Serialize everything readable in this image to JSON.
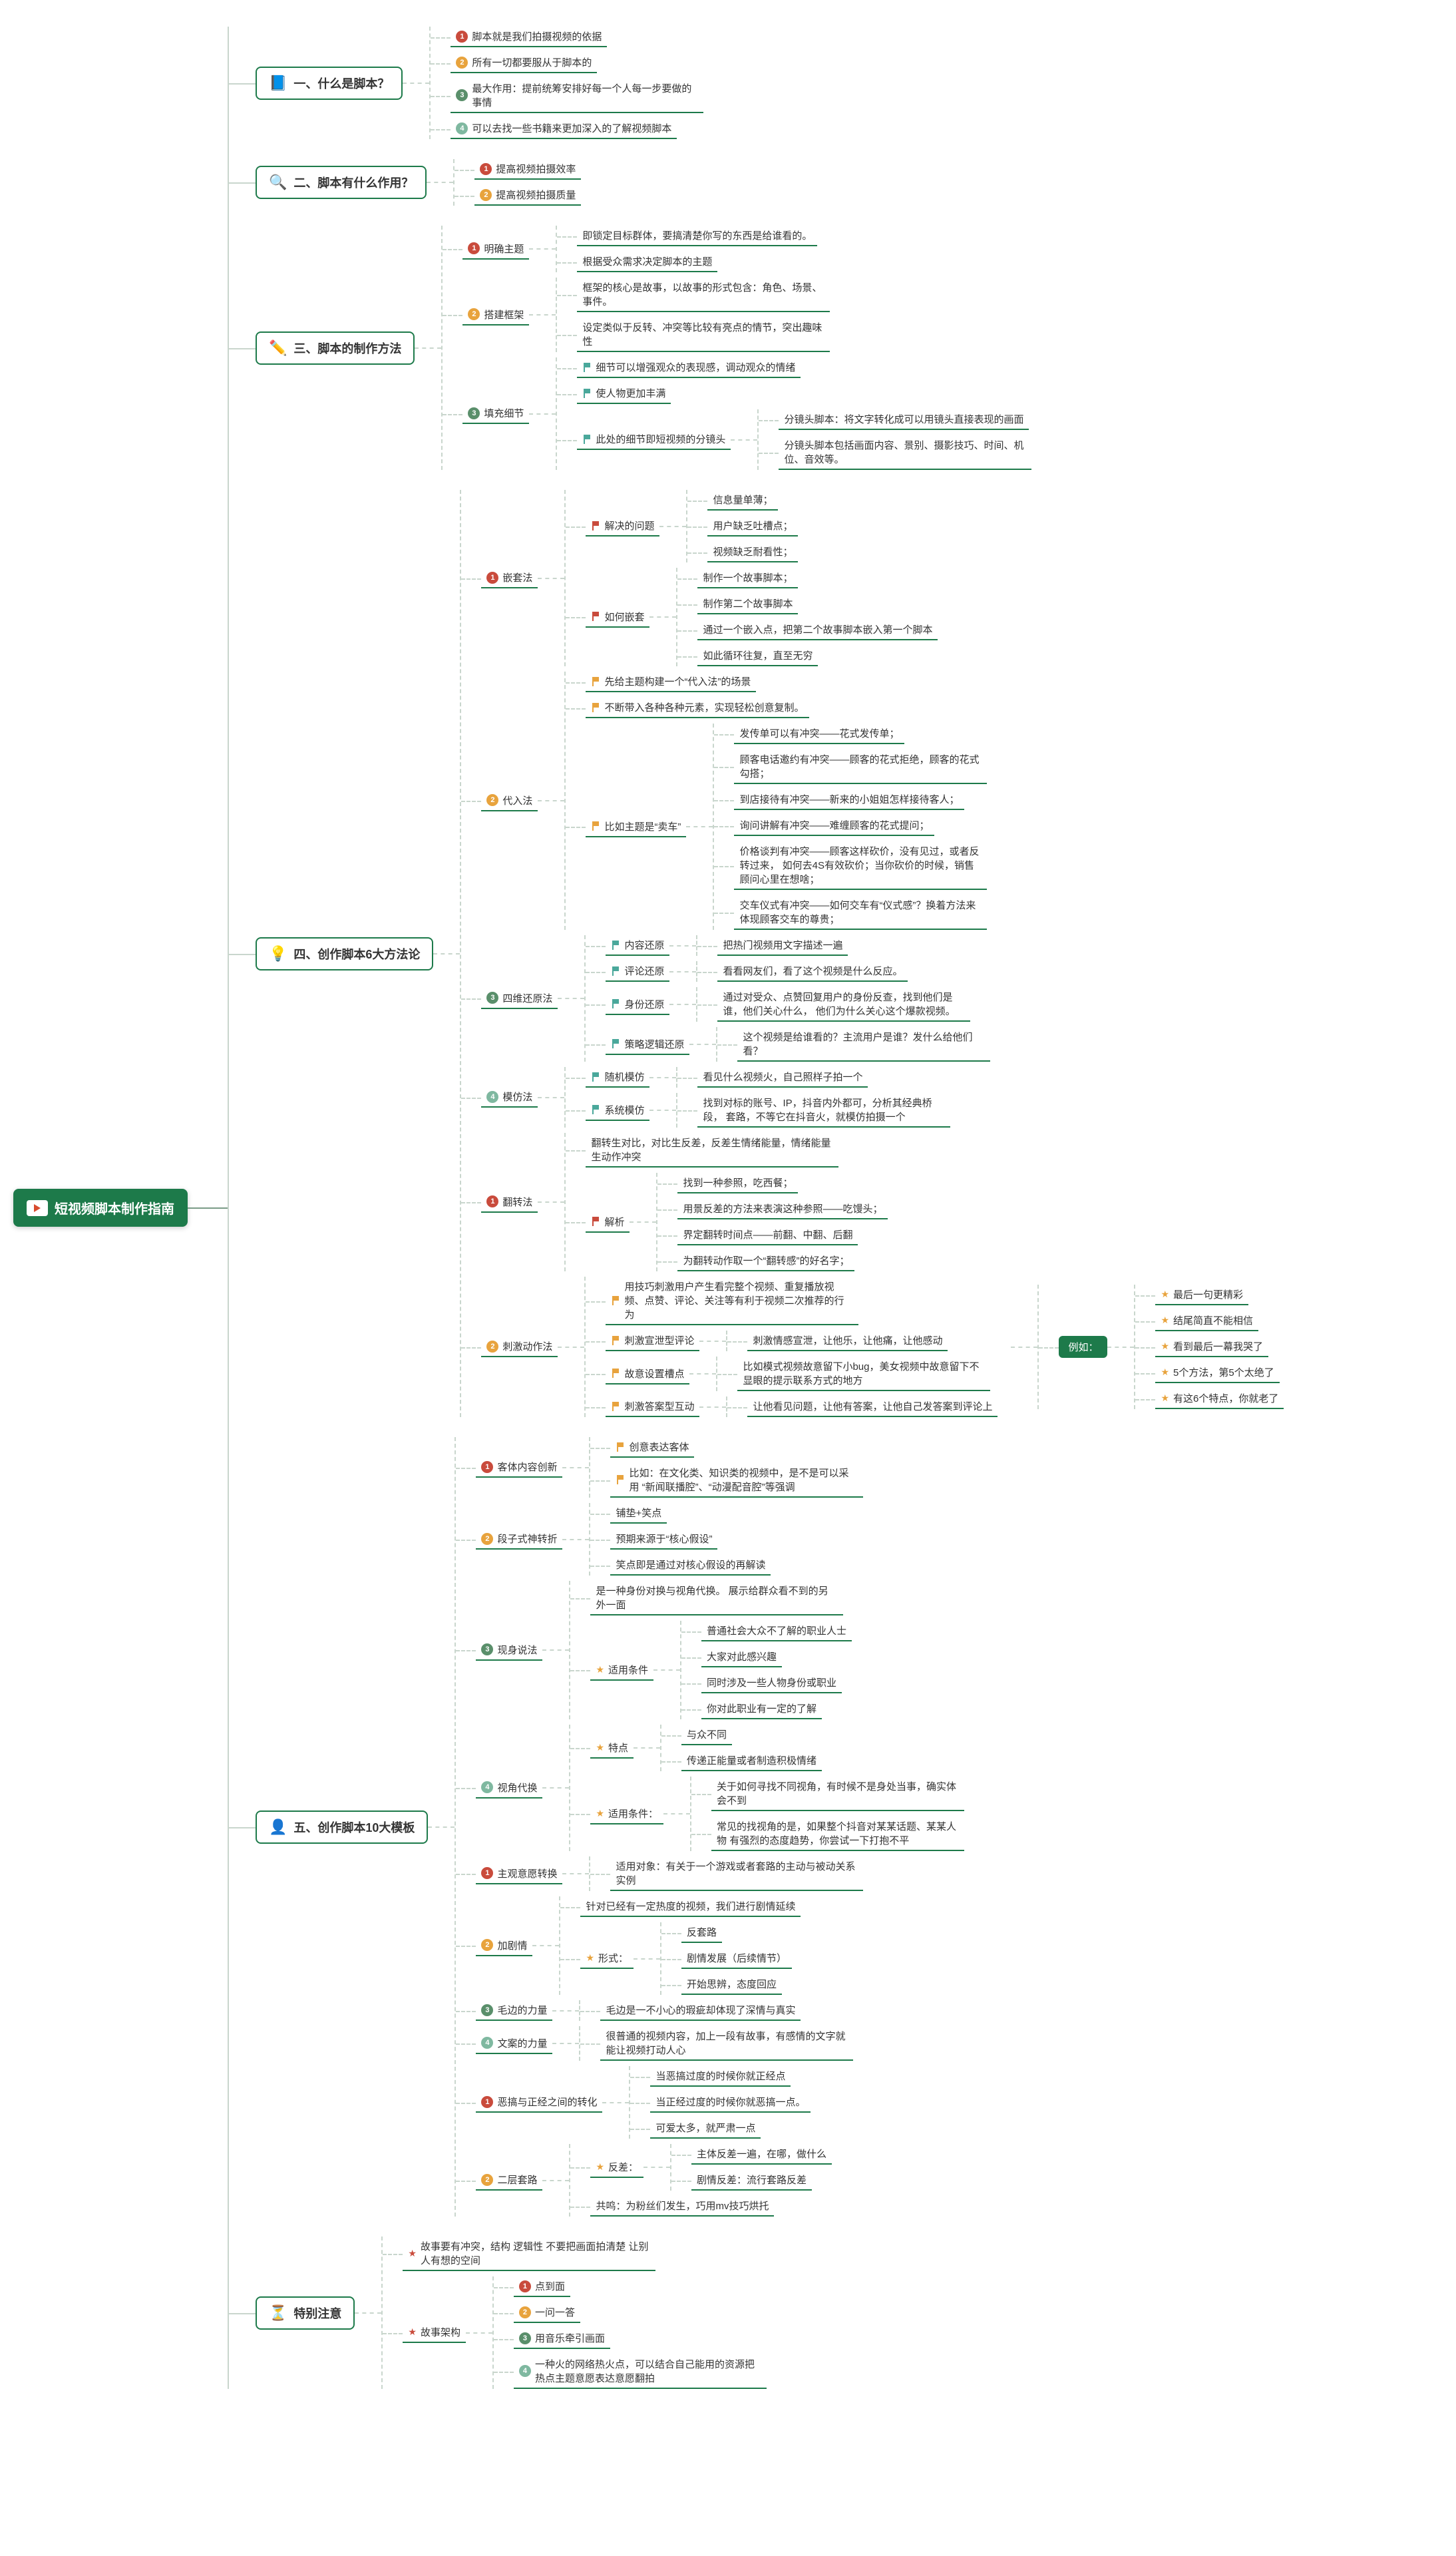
{
  "root": "短视频脚本制作指南",
  "colors": {
    "primary": "#1d7a4a",
    "dot1": "#c94b3c",
    "dot2": "#e8a33d",
    "dot3": "#5a8f6b",
    "dot4": "#7fb8a0",
    "flag_red": "#c94b3c",
    "flag_orange": "#e8a33d",
    "flag_teal": "#4aa89b"
  },
  "s1": {
    "title": "一、什么是脚本？",
    "icon": "📘",
    "items": [
      "脚本就是我们拍摄视频的依据",
      "所有一切都要服从于脚本的",
      "最大作用：提前统筹安排好每一个人每一步要做的事情",
      "可以去找一些书籍来更加深入的了解视频脚本"
    ]
  },
  "s2": {
    "title": "二、脚本有什么作用？",
    "icon": "🔍",
    "items": [
      "提高视频拍摄效率",
      "提高视频拍摄质量"
    ]
  },
  "s3": {
    "title": "三、脚本的制作方法",
    "icon": "✏️",
    "n1": {
      "label": "明确主题",
      "items": [
        "即锁定目标群体，要搞清楚你写的东西是给谁看的。",
        "根据受众需求决定脚本的主题"
      ]
    },
    "n2": {
      "label": "搭建框架",
      "items": [
        "框架的核心是故事，以故事的形式包含：角色、场景、事件。",
        "设定类似于反转、冲突等比较有亮点的情节，突出趣味性"
      ]
    },
    "n3": {
      "label": "填充细节",
      "a": "细节可以增强观众的表现感，调动观众的情绪",
      "b": "使人物更加丰满",
      "c": {
        "label": "此处的细节即短视频的分镜头",
        "items": [
          "分镜头脚本：将文字转化成可以用镜头直接表现的画面",
          "分镜头脚本包括画面内容、景别、摄影技巧、时间、机位、音效等。"
        ]
      }
    }
  },
  "s4": {
    "title": "四、创作脚本6大方法论",
    "icon": "💡",
    "m1": {
      "label": "嵌套法",
      "p1": {
        "label": "解决的问题",
        "items": [
          "信息量单薄；",
          "用户缺乏吐槽点；",
          "视频缺乏耐看性；"
        ]
      },
      "p2": {
        "label": "如何嵌套",
        "items": [
          "制作一个故事脚本；",
          "制作第二个故事脚本",
          "通过一个嵌入点，把第二个故事脚本嵌入第一个脚本",
          "如此循环往复，直至无穷"
        ]
      }
    },
    "m2": {
      "label": "代入法",
      "a": "先给主题构建一个“代入法”的场景",
      "b": "不断带入各种各种元素，实现轻松创意复制。",
      "c": {
        "label": "比如主题是“卖车”",
        "items": [
          "发传单可以有冲突——花式发传单；",
          "顾客电话邀约有冲突——顾客的花式拒绝，顾客的花式勾搭；",
          "到店接待有冲突——新来的小姐姐怎样接待客人；",
          "询问讲解有冲突——难缠顾客的花式提问；",
          "价格谈判有冲突——顾客这样砍价，没有见过，或者反转过来，\n如何去4S有效砍价；当你砍价的时候，销售顾问心里在想啥；",
          "交车仪式有冲突——如何交车有“仪式感”？换着方法来体现顾客交车的尊贵；"
        ]
      }
    },
    "m3": {
      "label": "四维还原法",
      "items": [
        {
          "k": "内容还原",
          "v": "把热门视频用文字描述一遍"
        },
        {
          "k": "评论还原",
          "v": "看看网友们，看了这个视频是什么反应。"
        },
        {
          "k": "身份还原",
          "v": "通过对受众、点赞回复用户的身份反查，找到他们是谁，他们关心什么，\n他们为什么关心这个爆款视频。"
        },
        {
          "k": "策略逻辑还原",
          "v": "这个视频是给谁看的？主流用户是谁？发什么给他们看？"
        }
      ]
    },
    "m4": {
      "label": "模仿法",
      "items": [
        {
          "k": "随机模仿",
          "v": "看见什么视频火，自己照样子拍一个"
        },
        {
          "k": "系统模仿",
          "v": "找到对标的账号、IP，抖音内外都可，分析其经典桥段，\n套路，不等它在抖音火，就模仿拍摄一个"
        }
      ]
    },
    "m5": {
      "label": "翻转法",
      "a": "翻转生对比，对比生反差，反差生情绪能量，情绪能量生动作冲突",
      "b": {
        "label": "解析",
        "items": [
          "找到一种参照，吃西餐；",
          "用景反差的方法来表演这种参照——吃馒头；",
          "界定翻转时间点——前翻、中翻、后翻",
          "为翻转动作取一个“翻转感”的好名字；"
        ]
      }
    },
    "m6": {
      "label": "刺激动作法",
      "a": "用技巧刺激用户产生看完整个视频、重复播放视频、点赞、评论、关注等有利于视频二次推荐的行为",
      "items": [
        {
          "k": "刺激宣泄型评论",
          "v": "刺激情感宣泄，让他乐，让他痛，让他感动"
        },
        {
          "k": "故意设置槽点",
          "v": "比如模式视频故意留下小bug，美女视频中故意留下不显眼的提示联系方式的地方"
        },
        {
          "k": "刺激答案型互动",
          "v": "让他看见问题，让他有答案，让他自己发答案到评论上"
        }
      ],
      "example": {
        "label": "例如：",
        "items": [
          "最后一句更精彩",
          "结尾简直不能相信",
          "看到最后一幕我哭了",
          "5个方法，第5个太绝了",
          "有这6个特点，你就老了"
        ]
      }
    }
  },
  "s5": {
    "title": "五、创作脚本10大模板",
    "icon": "👤",
    "t1": {
      "label": "客体内容创新",
      "items": [
        "创意表达客体",
        "比如：在文化类、知识类的视频中，是不是可以采用\n“新闻联播腔”、“动漫配音腔”等强调"
      ]
    },
    "t2": {
      "label": "段子式神转折",
      "items": [
        "铺垫+笑点",
        "预期来源于“核心假设”",
        "笑点即是通过对核心假设的再解读"
      ]
    },
    "t3": {
      "label": "现身说法",
      "a": "是一种身份对换与视角代换。\n展示给群众看不到的另外一面",
      "b": {
        "label": "适用条件",
        "items": [
          "普通社会大众不了解的职业人士",
          "大家对此感兴趣",
          "同时涉及一些人物身份或职业",
          "你对此职业有一定的了解"
        ]
      }
    },
    "t4": {
      "label": "视角代换",
      "a": {
        "label": "特点",
        "items": [
          "与众不同",
          "传递正能量或者制造积极情绪"
        ]
      },
      "b": {
        "label": "适用条件：",
        "items": [
          "关于如何寻找不同视角，有时候不是身处当事，确实体会不到",
          "常见的找视角的是，如果整个抖音对某某话题、某某人物\n有强烈的态度趋势，你尝试一下打抱不平"
        ]
      }
    },
    "t5": {
      "label": "主观意愿转换",
      "v": "适用对象：有关于一个游戏或者套路的主动与被动关系实例"
    },
    "t6": {
      "label": "加剧情",
      "a": "针对已经有一定热度的视频，我们进行剧情延续",
      "b": {
        "label": "形式：",
        "items": [
          "反套路",
          "剧情发展（后续情节）",
          "开始思辨，态度回应"
        ]
      }
    },
    "t7": {
      "label": "毛边的力量",
      "v": "毛边是一不小心的瑕疵却体现了深情与真实"
    },
    "t8": {
      "label": "文案的力量",
      "v": "很普通的视频内容，加上一段有故事，有感情的文字就能让视频打动人心"
    },
    "t9": {
      "label": "恶搞与正经之间的转化",
      "items": [
        "当恶搞过度的时候你就正经点",
        "当正经过度的时候你就恶搞一点。",
        "可爱太多，就严肃一点"
      ]
    },
    "t10": {
      "label": "二层套路",
      "a": {
        "label": "反差：",
        "items": [
          "主体反差一遍，在哪，做什么",
          "剧情反差：流行套路反差"
        ]
      },
      "b": "共鸣：为粉丝们发生，巧用mv技巧烘托"
    }
  },
  "s6": {
    "title": "特别注意",
    "icon": "⏳",
    "a": "故事要有冲突，结构 逻辑性 不要把画面拍清楚\n让别人有想的空间",
    "b": {
      "label": "故事架构",
      "items": [
        "点到面",
        "一问一答",
        "用音乐牵引画面",
        "一种火的网络热火点，可以结合自己能用的资源把热点主题意愿表达意愿翻拍"
      ]
    }
  }
}
